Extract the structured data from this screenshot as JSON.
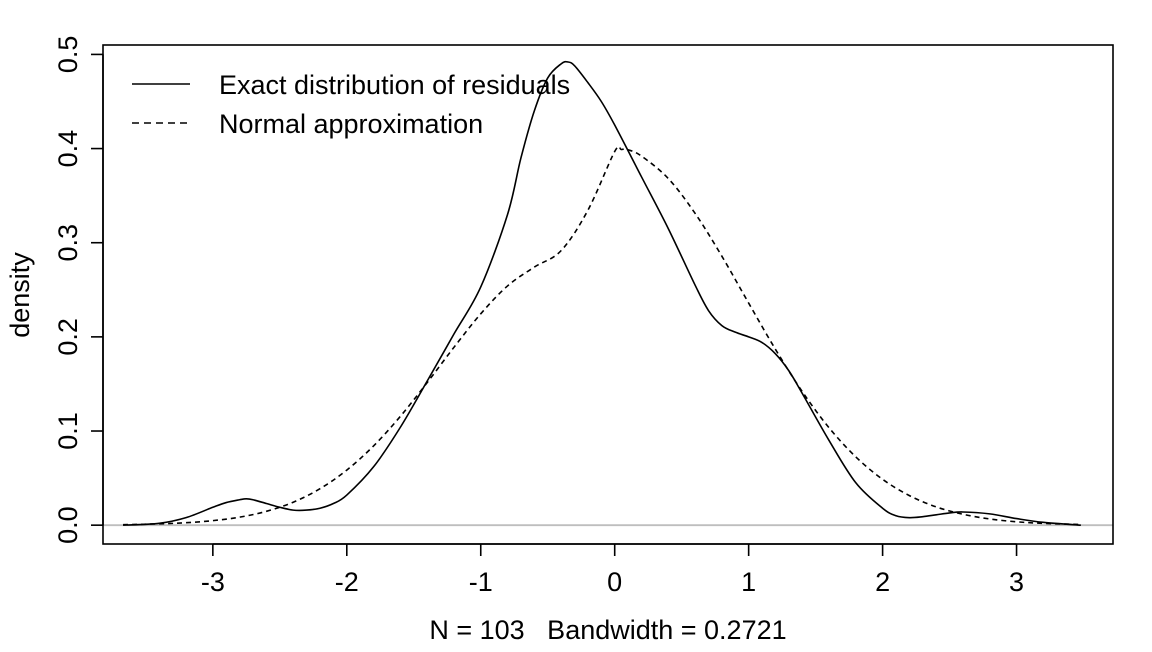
{
  "chart_data": {
    "type": "line",
    "title": "",
    "xlabel": "N = 103   Bandwidth = 0.2721",
    "ylabel": "density",
    "xlim": [
      -3.82,
      3.72
    ],
    "ylim": [
      -0.02,
      0.51
    ],
    "x_ticks": [
      -3,
      -2,
      -1,
      0,
      1,
      2,
      3
    ],
    "x_tick_labels": [
      "-3",
      "-2",
      "-1",
      "0",
      "1",
      "2",
      "3"
    ],
    "y_ticks": [
      0.0,
      0.1,
      0.2,
      0.3,
      0.4,
      0.5
    ],
    "y_tick_labels": [
      "0.0",
      "0.1",
      "0.2",
      "0.3",
      "0.4",
      "0.5"
    ],
    "grid": false,
    "legend_position": "top-left",
    "baseline": {
      "y": 0,
      "color": "#bebebe"
    },
    "series": [
      {
        "name": "Exact distribution of residuals",
        "style": "solid",
        "color": "#000000",
        "x": [
          -3.67,
          -3.4,
          -3.2,
          -3.0,
          -2.9,
          -2.8,
          -2.75,
          -2.7,
          -2.6,
          -2.5,
          -2.4,
          -2.3,
          -2.2,
          -2.1,
          -2.0,
          -1.8,
          -1.6,
          -1.4,
          -1.2,
          -1.0,
          -0.8,
          -0.7,
          -0.6,
          -0.5,
          -0.4,
          -0.35,
          -0.3,
          -0.2,
          -0.1,
          0.0,
          0.2,
          0.4,
          0.6,
          0.7,
          0.8,
          0.9,
          1.0,
          1.1,
          1.2,
          1.3,
          1.4,
          1.6,
          1.8,
          2.0,
          2.1,
          2.2,
          2.3,
          2.4,
          2.5,
          2.6,
          2.8,
          3.0,
          3.2,
          3.48
        ],
        "y": [
          0.0,
          0.002,
          0.008,
          0.019,
          0.024,
          0.027,
          0.028,
          0.027,
          0.023,
          0.019,
          0.016,
          0.016,
          0.018,
          0.023,
          0.032,
          0.062,
          0.104,
          0.153,
          0.203,
          0.253,
          0.33,
          0.39,
          0.44,
          0.475,
          0.49,
          0.492,
          0.488,
          0.47,
          0.45,
          0.425,
          0.37,
          0.315,
          0.255,
          0.228,
          0.212,
          0.205,
          0.2,
          0.194,
          0.182,
          0.164,
          0.14,
          0.09,
          0.045,
          0.018,
          0.01,
          0.008,
          0.009,
          0.011,
          0.013,
          0.014,
          0.012,
          0.007,
          0.003,
          0.0
        ]
      },
      {
        "name": "Normal approximation",
        "style": "dashed",
        "color": "#000000",
        "x": [
          -3.67,
          -3.4,
          -3.2,
          -3.0,
          -2.8,
          -2.6,
          -2.4,
          -2.2,
          -2.0,
          -1.8,
          -1.6,
          -1.4,
          -1.2,
          -1.0,
          -0.8,
          -0.6,
          -0.4,
          -0.2,
          0.0,
          0.05,
          0.1,
          0.2,
          0.4,
          0.6,
          0.8,
          1.0,
          1.2,
          1.4,
          1.6,
          1.8,
          2.0,
          2.2,
          2.4,
          2.6,
          2.8,
          3.0,
          3.2,
          3.48
        ],
        "y": [
          0.0005,
          0.0014,
          0.0026,
          0.0048,
          0.0085,
          0.0147,
          0.0244,
          0.0387,
          0.0585,
          0.0842,
          0.1156,
          0.1514,
          0.1889,
          0.2245,
          0.2541,
          0.2741,
          0.2916,
          0.3345,
          0.3969,
          0.399,
          0.3987,
          0.392,
          0.3682,
          0.3312,
          0.2857,
          0.2359,
          0.1868,
          0.1419,
          0.1035,
          0.0725,
          0.0487,
          0.0314,
          0.0194,
          0.0116,
          0.0066,
          0.0036,
          0.0019,
          0.0007
        ]
      }
    ]
  }
}
